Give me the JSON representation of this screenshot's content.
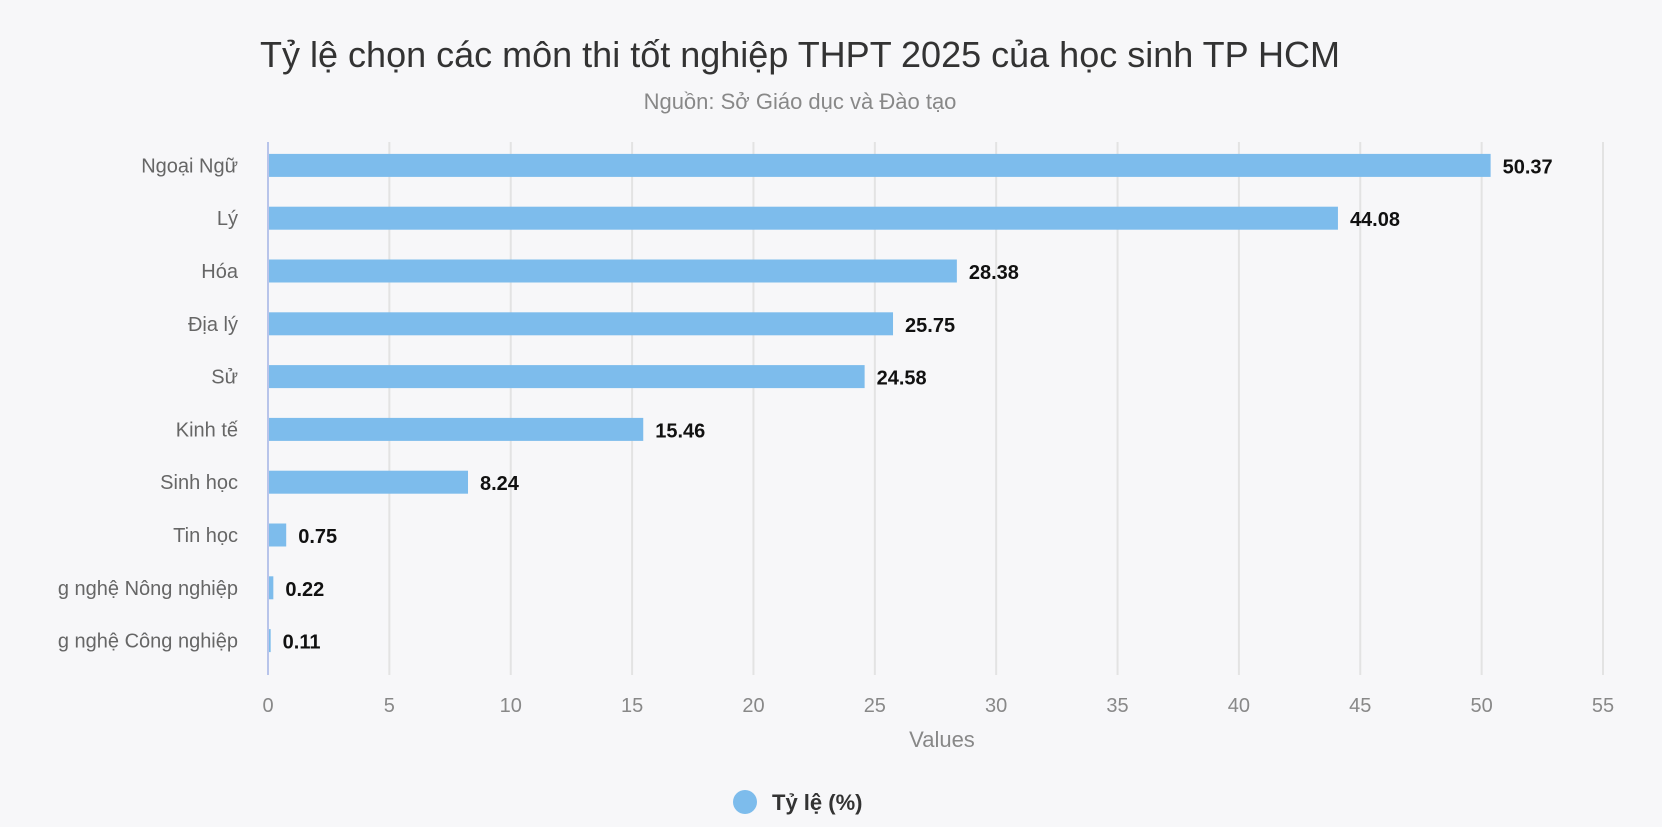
{
  "chart_data": {
    "type": "bar",
    "orientation": "horizontal",
    "title": "Tỷ lệ chọn các môn thi tốt nghiệp THPT 2025 của học sinh TP HCM",
    "subtitle": "Nguồn: Sở Giáo dục và Đào tạo",
    "categories": [
      "Ngoại Ngữ",
      "Lý",
      "Hóa",
      "Địa lý",
      "Sử",
      "Kinh tế",
      "Sinh học",
      "Tin học",
      "g nghệ Nông nghiệp",
      "g nghệ Công nghiệp"
    ],
    "series": [
      {
        "name": "Tỷ lệ (%)",
        "values": [
          50.37,
          44.08,
          28.38,
          25.75,
          24.58,
          15.46,
          8.24,
          0.75,
          0.22,
          0.11
        ],
        "color": "#7dbcec"
      }
    ],
    "data_labels": [
      "50.37",
      "44.08",
      "28.38",
      "25.75",
      "24.58",
      "15.46",
      "8.24",
      "0.75",
      "0.22",
      "0.11"
    ],
    "xlabel": "Values",
    "ylabel": "",
    "xlim": [
      0,
      55
    ],
    "xticks": [
      0,
      5,
      10,
      15,
      20,
      25,
      30,
      35,
      40,
      45,
      50,
      55
    ],
    "xtick_labels": [
      "0",
      "5",
      "10",
      "15",
      "20",
      "25",
      "30",
      "35",
      "40",
      "45",
      "50",
      "55"
    ],
    "grid": true,
    "legend_position": "bottom-center",
    "gridline_color": "#e3e3e3",
    "axis_color": "#b8c4ea"
  }
}
